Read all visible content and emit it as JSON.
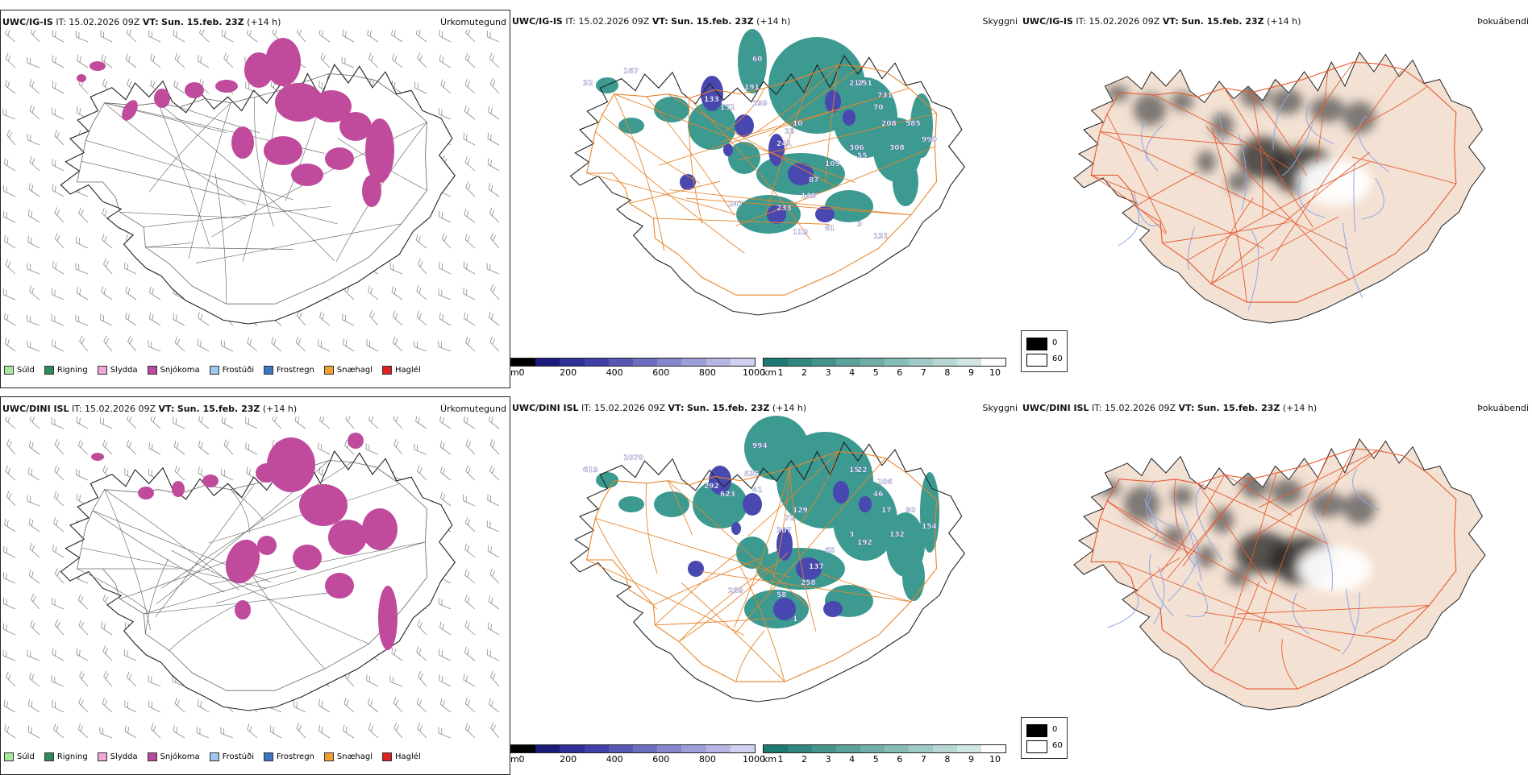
{
  "rows": [
    {
      "model": "UWC/IG-IS",
      "it_label": "IT:",
      "it_value": "15.02.2026 09Z",
      "vt_label": "VT:",
      "vt_value": "Sun. 15.feb. 23Z",
      "lead": "(+14 h)",
      "labels": [
        "32",
        "167",
        "60",
        "133",
        "151",
        "191",
        "199",
        "22",
        "241",
        "217",
        "251",
        "731",
        "70",
        "208",
        "585",
        "308",
        "990",
        "55",
        "10",
        "109",
        "306",
        "87",
        "148",
        "147",
        "233",
        "119",
        "81",
        "3",
        "131"
      ]
    },
    {
      "model": "UWC/DINI ISL",
      "it_label": "IT:",
      "it_value": "15.02.2026 09Z",
      "vt_label": "VT:",
      "vt_value": "Sun. 15.feb. 23Z",
      "lead": "(+14 h)",
      "labels": [
        "619",
        "1070",
        "994",
        "292",
        "623",
        "535",
        "41",
        "72",
        "307",
        "15",
        "22",
        "106",
        "46",
        "17",
        "90",
        "132",
        "154",
        "192",
        "129",
        "65",
        "3",
        "137",
        "258",
        "259",
        "58",
        "1"
      ]
    }
  ],
  "panel_titles": {
    "precip": "Úrkomutegund",
    "visibility": "Skyggni",
    "fog": "Þokuábendi"
  },
  "precip_legend": [
    {
      "label": "Súld",
      "color": "#a6e8a0"
    },
    {
      "label": "Rigning",
      "color": "#2e8b57"
    },
    {
      "label": "Slydda",
      "color": "#f0a8d8"
    },
    {
      "label": "Snjókoma",
      "color": "#b84a9e"
    },
    {
      "label": "Frostúði",
      "color": "#9ec8f0"
    },
    {
      "label": "Frostregn",
      "color": "#3a76c4"
    },
    {
      "label": "Snæhagl",
      "color": "#f0a030"
    },
    {
      "label": "Haglél",
      "color": "#e02020"
    }
  ],
  "cloud_base_scale": {
    "unit": "m",
    "ticks": [
      "0",
      "200",
      "400",
      "600",
      "800",
      "1000"
    ],
    "colors": [
      "#000000",
      "#1a1a7a",
      "#2e2e98",
      "#4040a8",
      "#5858b4",
      "#6e6ec0",
      "#8686cc",
      "#9e9ed8",
      "#b6b6e4",
      "#d0d0f0"
    ]
  },
  "visibility_scale": {
    "unit": "km",
    "ticks": [
      "1",
      "2",
      "3",
      "4",
      "5",
      "6",
      "7",
      "8",
      "9",
      "10"
    ],
    "colors": [
      "#1d7a72",
      "#2f877f",
      "#44948c",
      "#5aa29a",
      "#70afa8",
      "#87bdb7",
      "#9fcac5",
      "#b7d8d4",
      "#cfe6e3",
      "#ffffff"
    ]
  },
  "fog_legend": {
    "low": "0",
    "high": "60"
  },
  "colors": {
    "snow": "#c04a9c",
    "vis": "#3c9a90",
    "cloud": "#4848b0",
    "road": "#e8842a",
    "land": "#f3e1d3",
    "roadfog": "#e65a2e",
    "river": "#8fa8e8"
  }
}
